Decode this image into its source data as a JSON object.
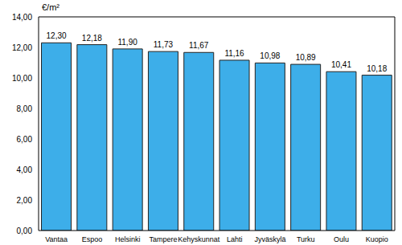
{
  "chart_data": {
    "type": "bar",
    "ylabel": "€/m²",
    "categories": [
      "Vantaa",
      "Espoo",
      "Helsinki",
      "Tampere",
      "Kehyskunnat",
      "Lahti",
      "Jyväskylä",
      "Turku",
      "Oulu",
      "Kuopio"
    ],
    "values": [
      12.3,
      12.18,
      11.9,
      11.73,
      11.67,
      11.16,
      10.98,
      10.89,
      10.41,
      10.18
    ],
    "value_labels": [
      "12,30",
      "12,18",
      "11,90",
      "11,73",
      "11,67",
      "11,16",
      "10,98",
      "10,89",
      "10,41",
      "10,18"
    ],
    "color": "#3daee9",
    "ylim": [
      0,
      14
    ],
    "yticks": [
      {
        "value": 0,
        "label": "0,00"
      },
      {
        "value": 2,
        "label": "2,00"
      },
      {
        "value": 4,
        "label": "4,00"
      },
      {
        "value": 6,
        "label": "6,00"
      },
      {
        "value": 8,
        "label": "8,00"
      },
      {
        "value": 10,
        "label": "10,00"
      },
      {
        "value": 12,
        "label": "12,00"
      },
      {
        "value": 14,
        "label": "14,00"
      }
    ],
    "grid": false,
    "data_labels": true
  }
}
